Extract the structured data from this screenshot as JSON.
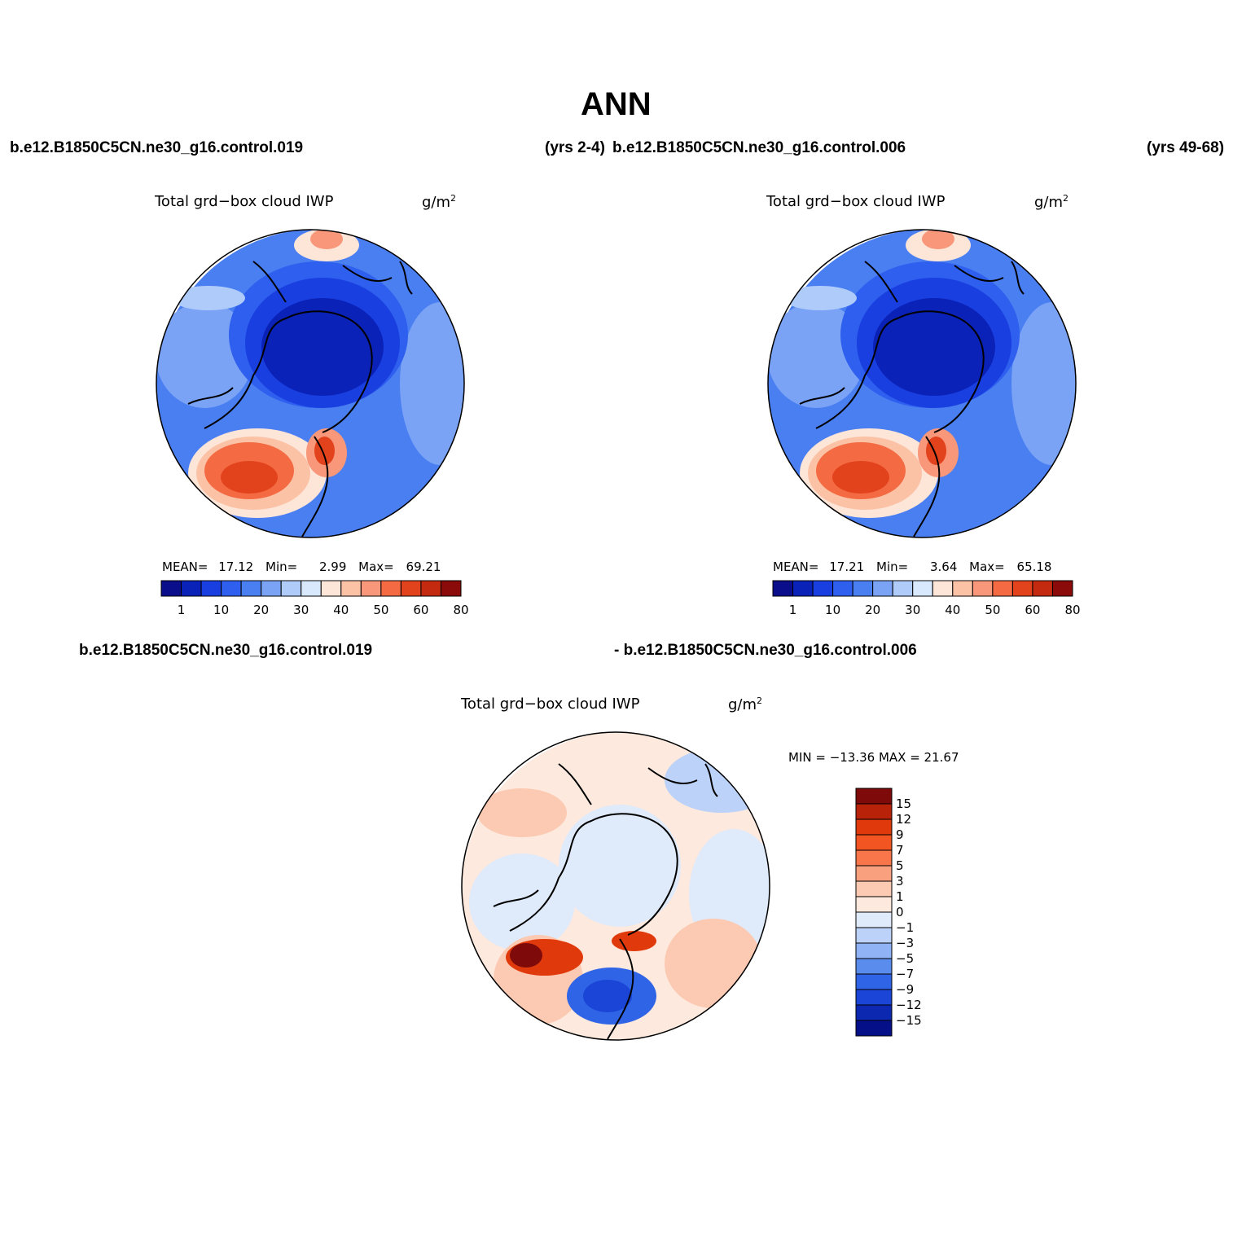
{
  "title": "ANN",
  "top_left_case": "b.e12.B1850C5CN.ne30_g16.control.019",
  "top_left_years": "(yrs 2-4)",
  "top_right_case": "b.e12.B1850C5CN.ne30_g16.control.006",
  "top_right_years": "(yrs 49-68)",
  "bottom_case_a": "b.e12.B1850C5CN.ne30_g16.control.019",
  "bottom_case_b": "- b.e12.B1850C5CN.ne30_g16.control.006",
  "panels": {
    "left": {
      "variable": "Total grd−box cloud IWP",
      "units": "g/m",
      "units_exp": "2",
      "mean_label": "MEAN=",
      "mean": "17.12",
      "min_label": "Min=",
      "min": "2.99",
      "max_label": "Max=",
      "max": "69.21"
    },
    "right": {
      "variable": "Total grd−box cloud IWP",
      "units": "g/m",
      "units_exp": "2",
      "mean_label": "MEAN=",
      "mean": "17.21",
      "min_label": "Min=",
      "min": "3.64",
      "max_label": "Max=",
      "max": "65.18"
    },
    "diff": {
      "variable": "Total grd−box cloud IWP",
      "units": "g/m",
      "units_exp": "2",
      "minmax": "MIN = −13.36 MAX =  21.67"
    }
  },
  "colorbar_main": {
    "colors": [
      "#0b0e8a",
      "#0a22b8",
      "#1a3fe0",
      "#2e5fee",
      "#4a7ff2",
      "#7aa3f6",
      "#aecbfa",
      "#d8e8fd",
      "#fde5d8",
      "#fcc2a6",
      "#f8977a",
      "#f46a43",
      "#e3431c",
      "#c42a10",
      "#8b0a0a"
    ],
    "labels": [
      "1",
      "10",
      "20",
      "30",
      "40",
      "50",
      "60",
      "80"
    ]
  },
  "colorbar_diff": {
    "colors": [
      "#7e0a0a",
      "#b82208",
      "#e03a0c",
      "#f25522",
      "#f8764a",
      "#f9a07f",
      "#fccab2",
      "#fde9dd",
      "#dfeafb",
      "#bcd2f8",
      "#8fb3f4",
      "#5a8cee",
      "#2f64e6",
      "#1a45d6",
      "#0d28b0",
      "#050f88"
    ],
    "labels": [
      "15",
      "12",
      "9",
      "7",
      "5",
      "3",
      "1",
      "0",
      "−1",
      "−3",
      "−5",
      "−7",
      "−9",
      "−12",
      "−15"
    ]
  },
  "maps": {
    "left": {
      "palette": "main",
      "type": "north-polar-stereographic"
    },
    "right": {
      "palette": "main",
      "type": "north-polar-stereographic"
    },
    "diff": {
      "palette": "diff",
      "type": "north-polar-stereographic"
    }
  }
}
